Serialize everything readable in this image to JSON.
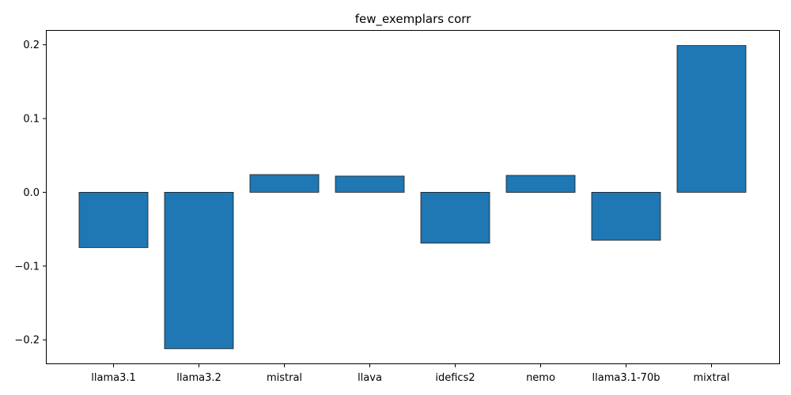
{
  "chart_data": {
    "type": "bar",
    "title": "few_exemplars corr",
    "xlabel": "",
    "ylabel": "",
    "categories": [
      "llama3.1",
      "llama3.2",
      "mistral",
      "llava",
      "idefics2",
      "nemo",
      "llama3.1-70b",
      "mixtral"
    ],
    "values": [
      -0.075,
      -0.212,
      0.024,
      0.022,
      -0.069,
      0.023,
      -0.065,
      0.199
    ],
    "ylim": [
      -0.233,
      0.22
    ],
    "yticks": [
      -0.2,
      -0.1,
      0.0,
      0.1,
      0.2
    ],
    "ytick_labels": [
      "−0.2",
      "−0.1",
      "0.0",
      "0.1",
      "0.2"
    ],
    "grid": false,
    "legend": "none",
    "bar_color": "#1f77b4",
    "bar_edge_color": "#1a1a1a"
  }
}
